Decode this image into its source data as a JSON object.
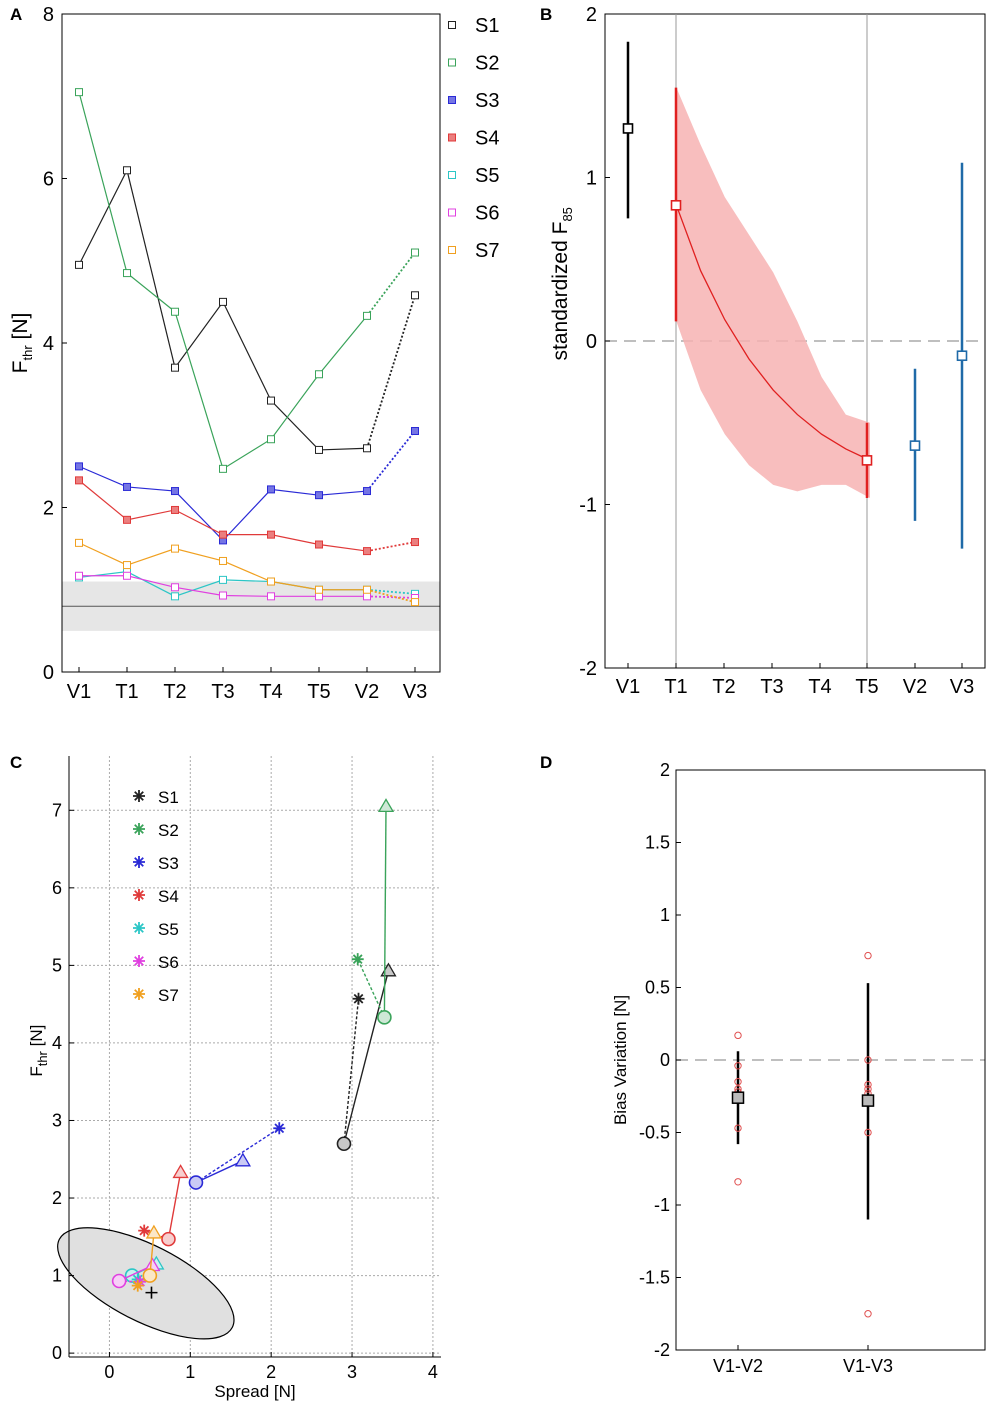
{
  "panels": {
    "A": {
      "letter": "A"
    },
    "B": {
      "letter": "B"
    },
    "C": {
      "letter": "C"
    },
    "D": {
      "letter": "D"
    }
  },
  "colors": {
    "S1": "#222222",
    "S2": "#3aa35a",
    "S3": "#2a2ad6",
    "S4": "#e03a3a",
    "S5": "#2cc6c6",
    "S6": "#e040e0",
    "S7": "#f0a020",
    "baseline": "#000000",
    "training": "#cc2020",
    "validation": "#1a1ad0",
    "panelB_blue": "#1f6aa8",
    "shade": "#f7b3b3",
    "gray_band": "#e6e6e6"
  },
  "chart_data": [
    {
      "panel": "A",
      "type": "line",
      "title": "",
      "xlabel": "",
      "ylabel": "F",
      "ylabel_sub": "thr",
      "ylabel_unit": " [N]",
      "categories": [
        "V1",
        "T1",
        "T2",
        "T3",
        "T4",
        "T5",
        "V2",
        "V3"
      ],
      "category_groups": [
        "baseline",
        "training",
        "training",
        "training",
        "training",
        "training",
        "validation",
        "validation"
      ],
      "ylim": [
        0,
        8
      ],
      "yticks": [
        "0",
        "2",
        "4",
        "6",
        "8"
      ],
      "reference_band": [
        0.5,
        1.1
      ],
      "reference_line": 0.8,
      "series": [
        {
          "name": "S1",
          "values": [
            4.95,
            6.1,
            3.7,
            4.5,
            3.3,
            2.7,
            2.72,
            4.58
          ],
          "filled": false
        },
        {
          "name": "S2",
          "values": [
            7.05,
            4.85,
            4.38,
            2.47,
            2.83,
            3.62,
            4.33,
            5.1
          ],
          "filled": false
        },
        {
          "name": "S3",
          "values": [
            2.5,
            2.25,
            2.2,
            1.6,
            2.22,
            2.15,
            2.2,
            2.93
          ],
          "filled": true
        },
        {
          "name": "S4",
          "values": [
            2.33,
            1.85,
            1.97,
            1.67,
            1.67,
            1.55,
            1.47,
            1.58
          ],
          "filled": true
        },
        {
          "name": "S5",
          "values": [
            1.15,
            1.22,
            0.92,
            1.12,
            1.1,
            1.0,
            1.0,
            0.95
          ],
          "filled": false
        },
        {
          "name": "S6",
          "values": [
            1.17,
            1.17,
            1.03,
            0.93,
            0.92,
            0.92,
            0.92,
            0.9
          ],
          "filled": false
        },
        {
          "name": "S7",
          "values": [
            1.57,
            1.3,
            1.5,
            1.35,
            1.1,
            1.0,
            1.0,
            0.85
          ],
          "filled": false
        }
      ]
    },
    {
      "panel": "B",
      "type": "errorbar",
      "title": "",
      "xlabel": "",
      "ylabel": "standardized F",
      "ylabel_sub": "85",
      "categories": [
        "V1",
        "T1",
        "T2",
        "T3",
        "T4",
        "T5",
        "V2",
        "V3"
      ],
      "category_groups": [
        "baseline",
        "training",
        "training",
        "training",
        "training",
        "training",
        "validation",
        "validation"
      ],
      "ylim": [
        -2,
        2
      ],
      "yticks": [
        "-2",
        "-1",
        "0",
        "1",
        "2"
      ],
      "points": [
        {
          "category": "V1",
          "value": 1.3,
          "low": 0.75,
          "high": 1.83,
          "group": "baseline"
        },
        {
          "category": "T1",
          "value": 0.83,
          "low": 0.12,
          "high": 1.55,
          "group": "training"
        },
        {
          "category": "T5",
          "value": -0.73,
          "low": -0.96,
          "high": -0.5,
          "group": "training"
        },
        {
          "category": "V2",
          "value": -0.64,
          "low": -1.1,
          "high": -0.17,
          "group": "validation"
        },
        {
          "category": "V3",
          "value": -0.09,
          "low": -1.27,
          "high": 1.09,
          "group": "validation"
        }
      ],
      "trend": {
        "x": [
          1,
          1.5,
          2,
          2.5,
          3,
          3.5,
          4,
          4.5,
          5
        ],
        "y": [
          0.83,
          0.43,
          0.13,
          -0.11,
          -0.3,
          -0.45,
          -0.57,
          -0.66,
          -0.73
        ]
      },
      "band_upper": [
        1.55,
        1.2,
        0.88,
        0.65,
        0.42,
        0.12,
        -0.22,
        -0.45,
        -0.5
      ],
      "band_lower": [
        0.12,
        -0.3,
        -0.57,
        -0.76,
        -0.88,
        -0.92,
        -0.88,
        -0.88,
        -0.96
      ]
    },
    {
      "panel": "C",
      "type": "scatter",
      "title": "",
      "xlabel": "Spread [N]",
      "ylabel": "F",
      "ylabel_sub": "thr",
      "ylabel_unit": " [N]",
      "xlim": [
        -0.5,
        4.1
      ],
      "ylim": [
        -0.05,
        7.7
      ],
      "xticks": [
        "0",
        "1",
        "2",
        "3",
        "4"
      ],
      "yticks": [
        "0",
        "1",
        "2",
        "3",
        "4",
        "5",
        "6",
        "7"
      ],
      "grid": true,
      "ellipse": {
        "center": [
          0.45,
          0.9
        ],
        "rx": 1.2,
        "ry": 0.47,
        "rotation_deg": -27
      },
      "plus_marker": [
        0.52,
        0.78
      ],
      "series": [
        {
          "name": "S1",
          "triangle": [
            3.45,
            4.93
          ],
          "circle": [
            2.9,
            2.7
          ],
          "star": [
            3.08,
            4.57
          ]
        },
        {
          "name": "S2",
          "triangle": [
            3.42,
            7.05
          ],
          "circle": [
            3.4,
            4.33
          ],
          "star": [
            3.07,
            5.08
          ]
        },
        {
          "name": "S3",
          "triangle": [
            1.65,
            2.48
          ],
          "circle": [
            1.07,
            2.2
          ],
          "star": [
            2.1,
            2.9
          ]
        },
        {
          "name": "S4",
          "triangle": [
            0.88,
            2.33
          ],
          "circle": [
            0.73,
            1.47
          ],
          "star": [
            0.43,
            1.58
          ]
        },
        {
          "name": "S5",
          "triangle": [
            0.58,
            1.15
          ],
          "circle": [
            0.28,
            1.0
          ],
          "star": [
            0.35,
            0.95
          ]
        },
        {
          "name": "S6",
          "triangle": [
            0.53,
            1.13
          ],
          "circle": [
            0.12,
            0.93
          ],
          "star": [
            0.38,
            0.92
          ]
        },
        {
          "name": "S7",
          "triangle": [
            0.55,
            1.55
          ],
          "circle": [
            0.5,
            1.0
          ],
          "star": [
            0.35,
            0.87
          ]
        }
      ]
    },
    {
      "panel": "D",
      "type": "errorbar",
      "title": "",
      "xlabel": "",
      "ylabel": "Bias Variation [N]",
      "categories": [
        "V1-V2",
        "V1-V3"
      ],
      "ylim": [
        -2,
        2
      ],
      "yticks": [
        "-2",
        "-1.5",
        "-1",
        "-0.5",
        "0",
        "0.5",
        "1",
        "1.5",
        "2"
      ],
      "means": [
        -0.26,
        -0.28
      ],
      "err_low": [
        -0.58,
        -1.1
      ],
      "err_high": [
        0.06,
        0.53
      ],
      "individual": [
        [
          0.17,
          -0.04,
          -0.15,
          -0.2,
          -0.22,
          -0.47,
          -0.84
        ],
        [
          0.72,
          0.0,
          -0.17,
          -0.2,
          -0.23,
          -0.5,
          -1.75
        ]
      ]
    }
  ]
}
